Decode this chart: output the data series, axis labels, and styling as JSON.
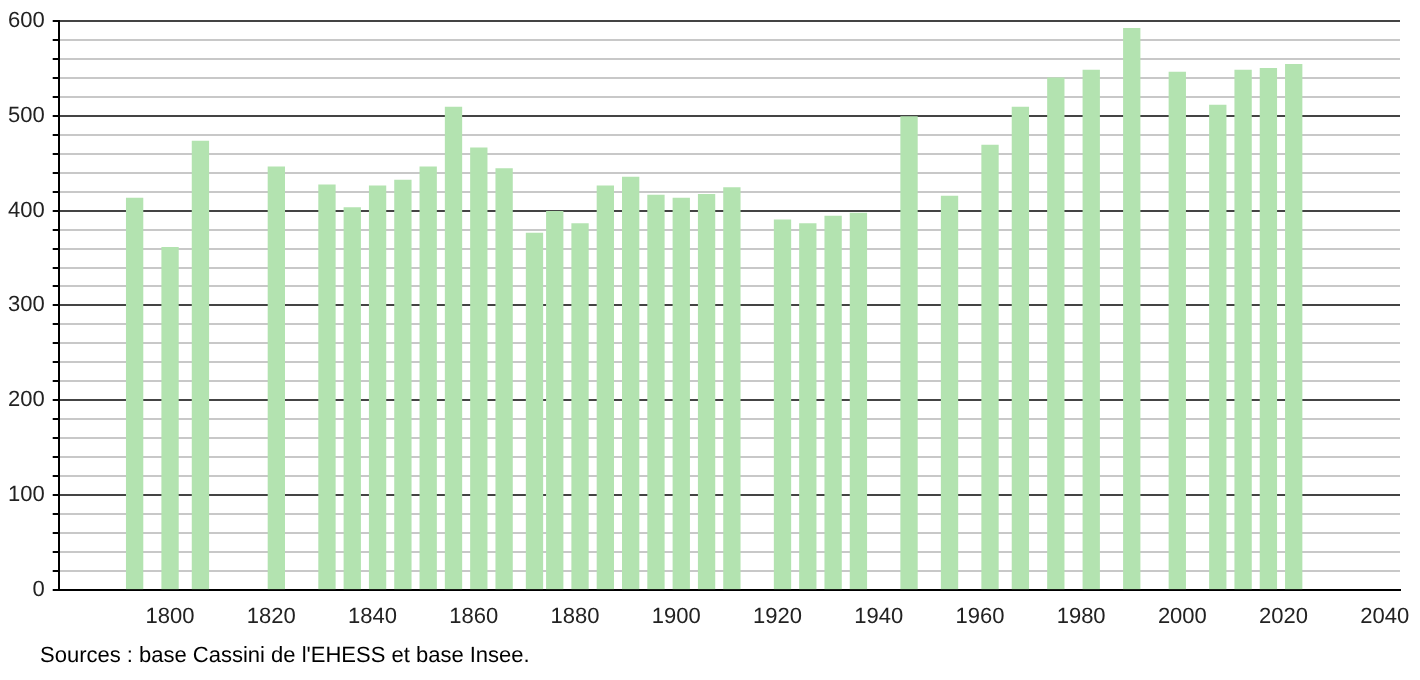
{
  "chart_data": {
    "type": "bar",
    "x": [
      1793,
      1800,
      1806,
      1821,
      1831,
      1836,
      1841,
      1846,
      1851,
      1856,
      1861,
      1866,
      1872,
      1876,
      1881,
      1886,
      1891,
      1896,
      1901,
      1906,
      1911,
      1921,
      1926,
      1931,
      1936,
      1946,
      1954,
      1962,
      1968,
      1975,
      1982,
      1990,
      1999,
      2007,
      2012,
      2017,
      2022
    ],
    "values": [
      413,
      361,
      473,
      446,
      427,
      403,
      426,
      432,
      446,
      509,
      466,
      444,
      376,
      399,
      386,
      426,
      435,
      416,
      413,
      417,
      424,
      390,
      386,
      394,
      397,
      499,
      415,
      469,
      509,
      540,
      548,
      592,
      546,
      511,
      548,
      550,
      554
    ],
    "color": "#b3e3b0",
    "xlim": [
      1778,
      2043
    ],
    "xticks": [
      1800,
      1820,
      1840,
      1860,
      1880,
      1900,
      1920,
      1940,
      1960,
      1980,
      2000,
      2020,
      2040
    ],
    "ylim": [
      0,
      600
    ],
    "yticks": [
      0,
      {
        "value": 20,
        "label": null
      },
      {
        "value": 40,
        "label": null
      },
      {
        "value": 60,
        "label": null
      },
      {
        "value": 80,
        "label": null
      },
      100,
      {
        "value": 120,
        "label": null
      },
      {
        "value": 140,
        "label": null
      },
      {
        "value": 160,
        "label": null
      },
      {
        "value": 180,
        "label": null
      },
      200,
      {
        "value": 220,
        "label": null
      },
      {
        "value": 240,
        "label": null
      },
      {
        "value": 260,
        "label": null
      },
      {
        "value": 280,
        "label": null
      },
      300,
      {
        "value": 320,
        "label": null
      },
      {
        "value": 340,
        "label": null
      },
      {
        "value": 360,
        "label": null
      },
      {
        "value": 380,
        "label": null
      },
      400,
      {
        "value": 420,
        "label": null
      },
      {
        "value": 440,
        "label": null
      },
      {
        "value": 460,
        "label": null
      },
      {
        "value": 480,
        "label": null
      },
      500,
      {
        "value": 520,
        "label": null
      },
      {
        "value": 540,
        "label": null
      },
      {
        "value": 560,
        "label": null
      },
      {
        "value": 580,
        "label": null
      },
      600
    ],
    "grid": "y",
    "annotations": [
      "Sources : base Cassini de l'EHESS et base Insee."
    ]
  }
}
